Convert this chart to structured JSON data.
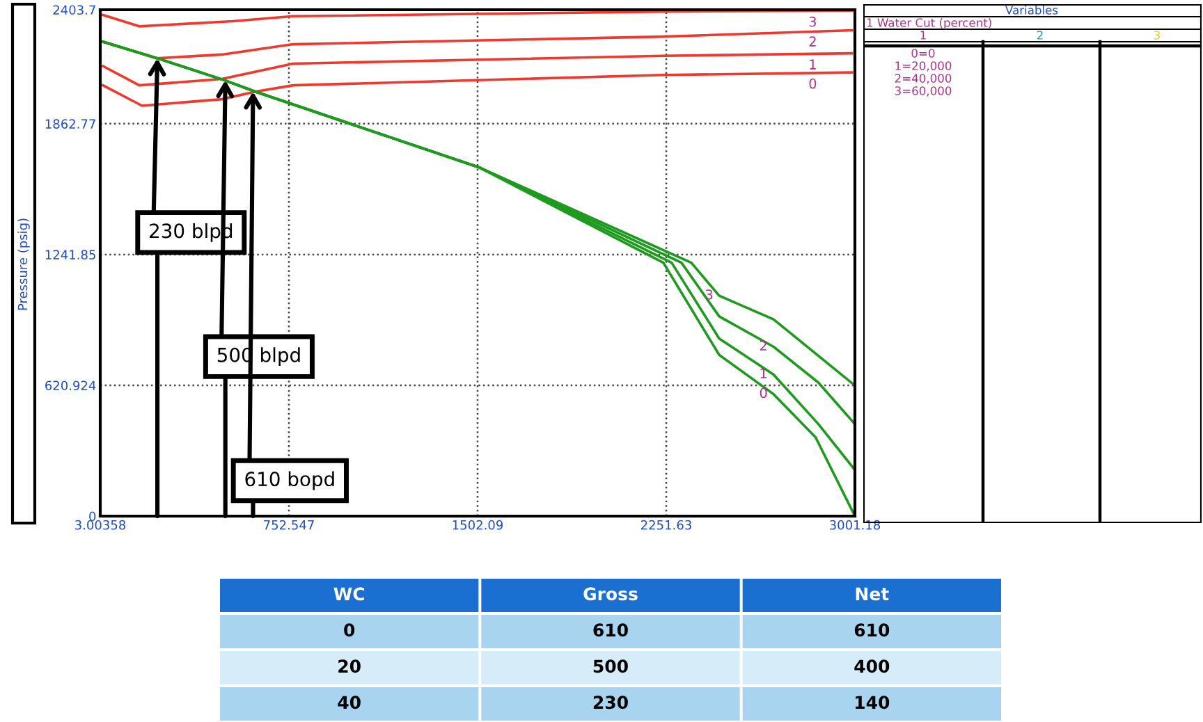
{
  "chart_data": {
    "type": "line",
    "ylabel": "Pressure (psig)",
    "xlim": [
      3.00358,
      3001.18
    ],
    "ylim": [
      0,
      2403.7
    ],
    "xticks": [
      3.00358,
      752.547,
      1502.09,
      2251.63,
      3001.18
    ],
    "yticks": [
      0,
      620.924,
      1241.85,
      1862.77,
      2403.7
    ],
    "grid": true,
    "line_style": "solid",
    "marker": "none",
    "series": [
      {
        "name": "3",
        "color": "#f0382c",
        "x": [
          14,
          158,
          530,
          769,
          2240,
          2989
        ],
        "values": [
          2379,
          2325,
          2349,
          2373,
          2395,
          2400
        ]
      },
      {
        "name": "2",
        "color": "#f0382c",
        "x": [
          14,
          225,
          486,
          769,
          2240,
          2989
        ],
        "values": [
          2252,
          2173,
          2191,
          2240,
          2276,
          2306
        ]
      },
      {
        "name": "1",
        "color": "#f0382c",
        "x": [
          14,
          158,
          486,
          769,
          2240,
          2989
        ],
        "values": [
          2136,
          2045,
          2075,
          2148,
          2185,
          2197
        ]
      },
      {
        "name": "0",
        "color": "#f0382c",
        "x": [
          14,
          169,
          486,
          619,
          769,
          2240,
          2989
        ],
        "values": [
          2045,
          1948,
          1979,
          2015,
          2045,
          2094,
          2106
        ]
      },
      {
        "name": "3",
        "color": "#1e9a1e",
        "x": [
          14,
          231,
          497,
          619,
          1507,
          2351,
          2462,
          2678,
          3001.18
        ],
        "values": [
          2252,
          2173,
          2069,
          2015,
          1656,
          1203,
          1046,
          934,
          620
        ]
      },
      {
        "name": "2",
        "color": "#1e9a1e",
        "x": [
          14,
          231,
          497,
          619,
          1507,
          2312,
          2462,
          2678,
          2856,
          3001.18
        ],
        "values": [
          2252,
          2173,
          2069,
          2015,
          1656,
          1203,
          948,
          804,
          634,
          437
        ]
      },
      {
        "name": "1",
        "color": "#1e9a1e",
        "x": [
          14,
          231,
          497,
          619,
          1507,
          2273,
          2462,
          2678,
          2856,
          3001.18
        ],
        "values": [
          2252,
          2173,
          2069,
          2015,
          1656,
          1203,
          843,
          672,
          437,
          219
        ]
      },
      {
        "name": "0",
        "color": "#1e9a1e",
        "x": [
          14,
          231,
          497,
          619,
          1507,
          2240,
          2462,
          2678,
          2845,
          3001.18
        ],
        "values": [
          2252,
          2173,
          2069,
          2015,
          1656,
          1203,
          765,
          579,
          374,
          0
        ]
      }
    ],
    "annotations": [
      {
        "text": "230 blpd",
        "x": 230,
        "y": 2173
      },
      {
        "text": "500 blpd",
        "x": 500,
        "y": 2069
      },
      {
        "text": "610 bopd",
        "x": 610,
        "y": 2015
      },
      "Variables",
      "1 Water Cut (percent)",
      "1",
      "2",
      "3",
      "0=0",
      "1=20,000",
      "2=40,000",
      "3=60,000",
      "WC",
      "Gross",
      "Net",
      "0",
      "610",
      "610",
      "20",
      "500",
      "400",
      "40",
      "230",
      "140"
    ]
  }
}
